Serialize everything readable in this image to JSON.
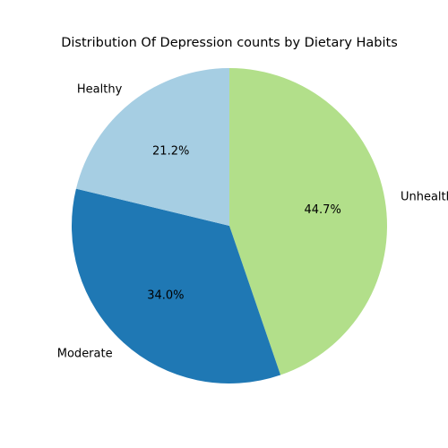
{
  "chart_data": {
    "type": "pie",
    "title": "Distribution Of Depression counts by Dietary Habits",
    "categories": [
      "Unhealthy",
      "Moderate",
      "Healthy"
    ],
    "values": [
      44.7,
      34.0,
      21.2
    ],
    "percent_labels": [
      "44.7%",
      "34.0%",
      "21.2%"
    ],
    "colors": [
      "#b2df8a",
      "#1f78b4",
      "#a6cee3"
    ],
    "start_angle_deg": 90,
    "direction": "clockwise",
    "legend": "none"
  }
}
